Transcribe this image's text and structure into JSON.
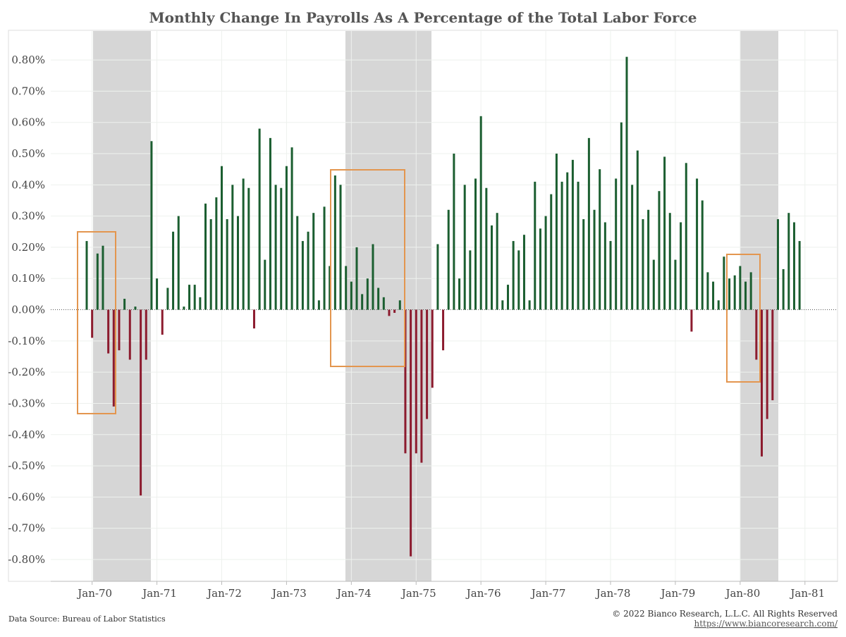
{
  "chart_data": {
    "type": "bar",
    "title": "Monthly Change In Payrolls As A Percentage of the Total Labor Force",
    "source": "Data Source: Bureau of Labor Statistics",
    "copyright": "© 2022 Bianco Research, L.L.C. All Rights Reserved",
    "url": "https://www.biancoresearch.com/",
    "categories": [
      null,
      "Jan-70",
      null,
      null,
      null,
      null,
      null,
      null,
      null,
      null,
      null,
      null,
      null,
      "Jan-71",
      null,
      null,
      null,
      null,
      null,
      null,
      null,
      null,
      null,
      null,
      null,
      "Jan-72",
      null,
      null,
      null,
      null,
      null,
      null,
      null,
      null,
      null,
      null,
      null,
      "Jan-73",
      null,
      null,
      null,
      null,
      null,
      null,
      null,
      null,
      null,
      null,
      null,
      "Jan-74",
      null,
      null,
      null,
      null,
      null,
      null,
      null,
      null,
      null,
      null,
      null,
      "Jan-75",
      null,
      null,
      null,
      null,
      null,
      null,
      null,
      null,
      null,
      null,
      null,
      "Jan-76",
      null,
      null,
      null,
      null,
      null,
      null,
      null,
      null,
      null,
      null,
      null,
      "Jan-77",
      null,
      null,
      null,
      null,
      null,
      null,
      null,
      null,
      null,
      null,
      null,
      "Jan-78",
      null,
      null,
      null,
      null,
      null,
      null,
      null,
      null,
      null,
      null,
      null,
      "Jan-79",
      null,
      null,
      null,
      null,
      null,
      null,
      null,
      null,
      null,
      null,
      null,
      "Jan-80",
      null,
      null,
      null,
      null,
      null,
      null,
      null,
      null,
      null,
      null,
      null,
      "Jan-81"
    ],
    "values": [
      0.22,
      -0.09,
      0.18,
      0.205,
      -0.14,
      -0.31,
      -0.13,
      0.035,
      -0.16,
      0.01,
      -0.595,
      -0.16,
      0.54,
      0.1,
      -0.08,
      0.07,
      0.25,
      0.3,
      0.01,
      0.08,
      0.08,
      0.04,
      0.34,
      0.29,
      0.36,
      0.46,
      0.29,
      0.4,
      0.3,
      0.42,
      0.39,
      -0.06,
      0.58,
      0.16,
      0.55,
      0.4,
      0.39,
      0.46,
      0.52,
      0.3,
      0.22,
      0.25,
      0.31,
      0.03,
      0.33,
      0.14,
      0.43,
      0.4,
      0.14,
      0.09,
      0.2,
      0.05,
      0.1,
      0.21,
      0.07,
      0.04,
      -0.02,
      -0.01,
      0.03,
      -0.46,
      -0.79,
      -0.46,
      -0.49,
      -0.35,
      -0.25,
      0.21,
      -0.13,
      0.32,
      0.5,
      0.1,
      0.4,
      0.19,
      0.42,
      0.62,
      0.39,
      0.27,
      0.31,
      0.03,
      0.08,
      0.22,
      0.19,
      0.24,
      0.03,
      0.41,
      0.26,
      0.3,
      0.37,
      0.5,
      0.41,
      0.44,
      0.48,
      0.41,
      0.29,
      0.55,
      0.32,
      0.45,
      0.28,
      0.22,
      0.42,
      0.6,
      0.81,
      0.4,
      0.51,
      0.29,
      0.32,
      0.16,
      0.38,
      0.49,
      0.31,
      0.16,
      0.28,
      0.47,
      -0.07,
      0.42,
      0.35,
      0.12,
      0.09,
      0.03,
      0.17,
      0.1,
      0.11,
      0.14,
      0.09,
      0.12,
      -0.16,
      -0.47,
      -0.35,
      -0.29,
      0.29,
      0.13,
      0.31,
      0.28,
      0.22,
      null
    ],
    "positive_color": "#1b5e30",
    "negative_color": "#8c1b2e",
    "ylim": [
      -0.87,
      0.895
    ],
    "yticks": [
      {
        "value": -0.8,
        "label": "-0.80%"
      },
      {
        "value": -0.7,
        "label": "-0.70%"
      },
      {
        "value": -0.6,
        "label": "-0.60%"
      },
      {
        "value": -0.5,
        "label": "-0.50%"
      },
      {
        "value": -0.4,
        "label": "-0.40%"
      },
      {
        "value": -0.3,
        "label": "-0.30%"
      },
      {
        "value": -0.2,
        "label": "-0.20%"
      },
      {
        "value": -0.1,
        "label": "-0.10%"
      },
      {
        "value": 0,
        "label": "0.00%"
      },
      {
        "value": 0.1,
        "label": "0.10%"
      },
      {
        "value": 0.2,
        "label": "0.20%"
      },
      {
        "value": 0.3,
        "label": "0.30%"
      },
      {
        "value": 0.4,
        "label": "0.40%"
      },
      {
        "value": 0.5,
        "label": "0.50%"
      },
      {
        "value": 0.6,
        "label": "0.60%"
      },
      {
        "value": 0.7,
        "label": "0.70%"
      },
      {
        "value": 0.8,
        "label": "0.80%"
      }
    ],
    "grid": true
  }
}
